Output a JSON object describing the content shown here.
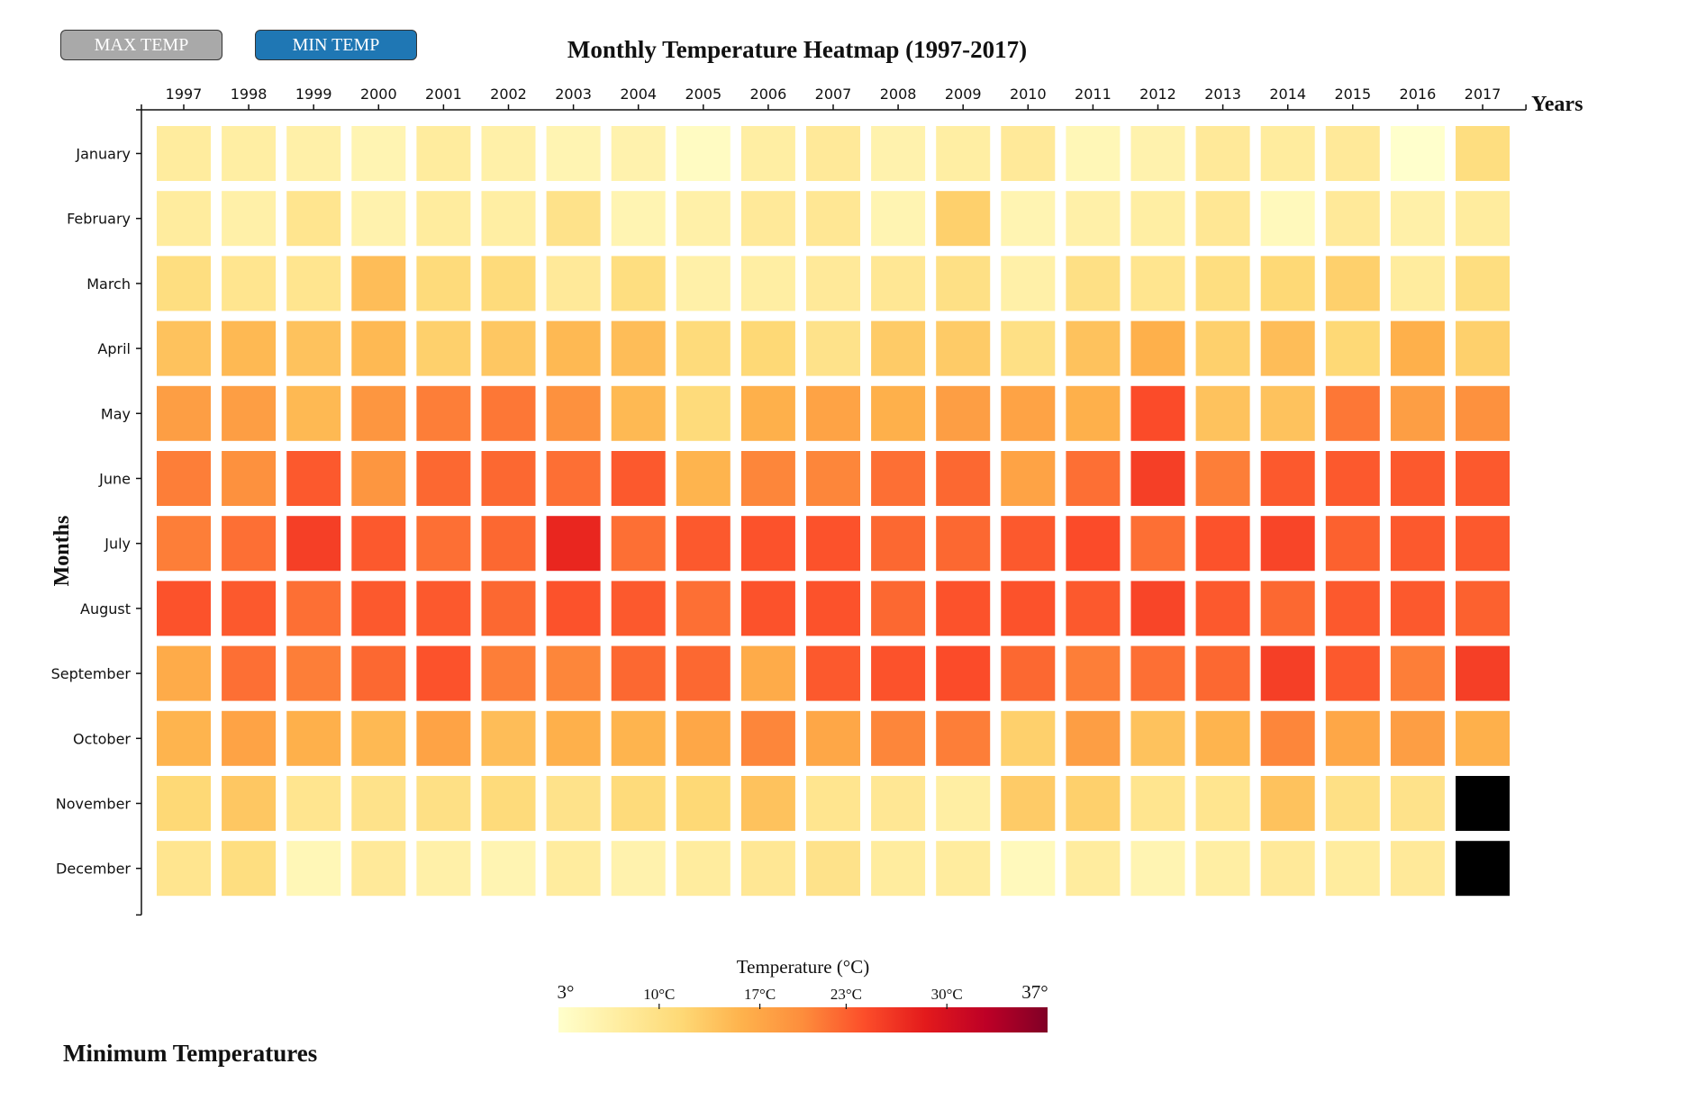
{
  "buttons": {
    "max_label": "MAX TEMP",
    "min_label": "MIN TEMP"
  },
  "title": "Monthly Temperature Heatmap (1997-2017)",
  "subtitle": "Minimum Temperatures",
  "legend": {
    "title": "Temperature (°C)",
    "min_label": "3°",
    "max_label": "37°",
    "domain": [
      3,
      37
    ],
    "ticks": [
      {
        "value": 10,
        "label": "10°C"
      },
      {
        "value": 17,
        "label": "17°C"
      },
      {
        "value": 23,
        "label": "23°C"
      },
      {
        "value": 30,
        "label": "30°C"
      }
    ]
  },
  "colors": {
    "scale": [
      "#ffffcc",
      "#ffeda0",
      "#fed976",
      "#feb24c",
      "#fd8d3c",
      "#fc4e2a",
      "#e31a1c",
      "#bd0026",
      "#800026"
    ],
    "missing": "#000000",
    "max_button": "#a9a9a9",
    "min_button": "#1f77b4"
  },
  "chart_data": {
    "type": "heatmap",
    "title": "Monthly Temperature Heatmap (1997-2017)",
    "xlabel": "Years",
    "ylabel": "Months",
    "x": [
      "1997",
      "1998",
      "1999",
      "2000",
      "2001",
      "2002",
      "2003",
      "2004",
      "2005",
      "2006",
      "2007",
      "2008",
      "2009",
      "2010",
      "2011",
      "2012",
      "2013",
      "2014",
      "2015",
      "2016",
      "2017"
    ],
    "y": [
      "January",
      "February",
      "March",
      "April",
      "May",
      "June",
      "July",
      "August",
      "September",
      "October",
      "November",
      "December"
    ],
    "value_range": [
      3,
      37
    ],
    "values": [
      [
        7.5,
        7,
        6.5,
        5.5,
        7.5,
        6.5,
        5.5,
        6,
        4,
        7,
        8,
        6,
        7,
        8,
        5,
        6,
        8,
        7.5,
        8,
        3,
        10.5
      ],
      [
        7.5,
        6.5,
        9,
        6,
        7.5,
        7,
        9.5,
        5.5,
        6.5,
        8,
        8.5,
        5.5,
        12.5,
        5.5,
        6.5,
        7,
        8.5,
        4.5,
        8,
        6.5,
        7.5
      ],
      [
        10.5,
        9,
        9,
        14.5,
        11,
        11,
        8,
        10.5,
        6.5,
        7,
        8,
        8.5,
        10,
        6.5,
        10,
        9,
        10.5,
        11.5,
        12.5,
        7.5,
        10.5
      ],
      [
        14,
        15,
        14,
        15,
        12.5,
        13.5,
        15,
        14.5,
        11,
        11.5,
        9.5,
        13,
        13,
        10,
        14,
        16,
        12.5,
        14.5,
        11.5,
        16,
        12.5
      ],
      [
        18,
        18,
        15,
        19,
        21,
        21.5,
        19.5,
        15,
        11,
        16,
        17.5,
        16,
        18,
        17.5,
        16,
        24.5,
        14,
        14,
        21.5,
        18,
        19.5
      ],
      [
        21,
        19.5,
        23.5,
        19,
        22.5,
        22.5,
        22,
        23.5,
        15.5,
        20.5,
        20.5,
        22,
        22.5,
        17.5,
        22,
        25.5,
        21,
        23.5,
        23.5,
        23.5,
        23.5
      ],
      [
        21,
        22,
        25.5,
        23.5,
        22,
        22.5,
        27.5,
        22,
        23.5,
        24,
        24,
        22.5,
        22.5,
        23.5,
        24.5,
        22,
        24,
        25,
        23,
        23.5,
        23.5
      ],
      [
        24,
        23.5,
        22,
        23.5,
        23.5,
        22.5,
        24,
        23.5,
        22,
        24,
        24,
        22.5,
        24,
        24,
        23.5,
        25,
        23.5,
        22.5,
        23.5,
        23.5,
        23
      ],
      [
        16.5,
        22,
        21,
        22.5,
        24,
        21,
        20.5,
        22.5,
        22.5,
        16.5,
        23.5,
        24,
        24.5,
        22.5,
        21,
        22,
        22.5,
        25.5,
        23.5,
        21,
        25.5
      ],
      [
        15.5,
        17.5,
        16,
        15,
        17.5,
        14.5,
        16,
        15.5,
        17,
        20.5,
        17,
        20.5,
        21,
        12.5,
        18,
        14,
        15.5,
        20.5,
        17,
        18,
        16
      ],
      [
        11.5,
        13.5,
        9,
        9.5,
        10,
        11,
        9.5,
        11,
        11.5,
        14,
        9,
        8.5,
        7,
        13,
        12.5,
        9,
        9,
        14,
        10,
        9.5,
        null
      ],
      [
        9,
        10.5,
        5,
        8,
        6.5,
        5.5,
        7.5,
        6,
        7.5,
        8.5,
        9.5,
        7.5,
        7.5,
        4.5,
        7.5,
        5.5,
        7,
        8,
        7.5,
        8,
        null
      ]
    ]
  }
}
